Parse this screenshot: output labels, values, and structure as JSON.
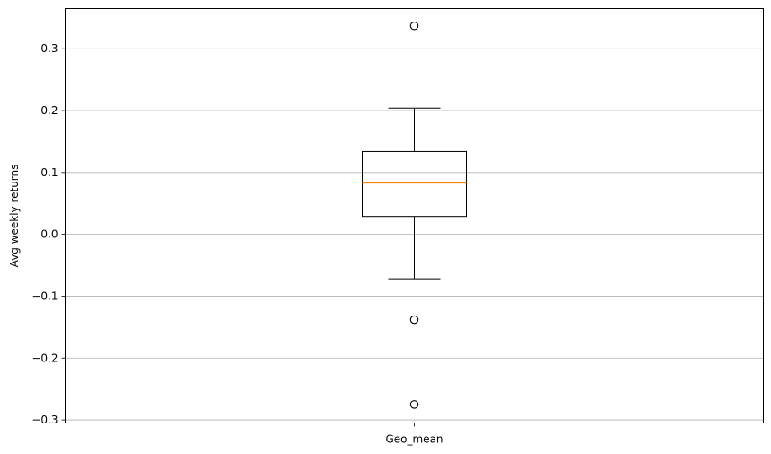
{
  "chart_data": {
    "type": "box",
    "categories": [
      "Geo_mean"
    ],
    "title": "",
    "xlabel": "",
    "ylabel": "Avg weekly returns",
    "ylim": [
      -0.305,
      0.365
    ],
    "yticks": [
      {
        "value": -0.3,
        "label": "−0.3"
      },
      {
        "value": -0.2,
        "label": "−0.2"
      },
      {
        "value": -0.1,
        "label": "−0.1"
      },
      {
        "value": 0.0,
        "label": "0.0"
      },
      {
        "value": 0.1,
        "label": "0.1"
      },
      {
        "value": 0.2,
        "label": "0.2"
      },
      {
        "value": 0.3,
        "label": "0.3"
      }
    ],
    "grid": "y",
    "boxes": [
      {
        "name": "Geo_mean",
        "whisker_low": -0.072,
        "q1": 0.029,
        "median": 0.083,
        "q3": 0.134,
        "whisker_high": 0.204,
        "outliers": [
          0.337,
          -0.138,
          -0.275
        ]
      }
    ],
    "colors": {
      "median": "#ff7f0e",
      "box": "#000000",
      "grid": "#b0b0b0"
    }
  }
}
